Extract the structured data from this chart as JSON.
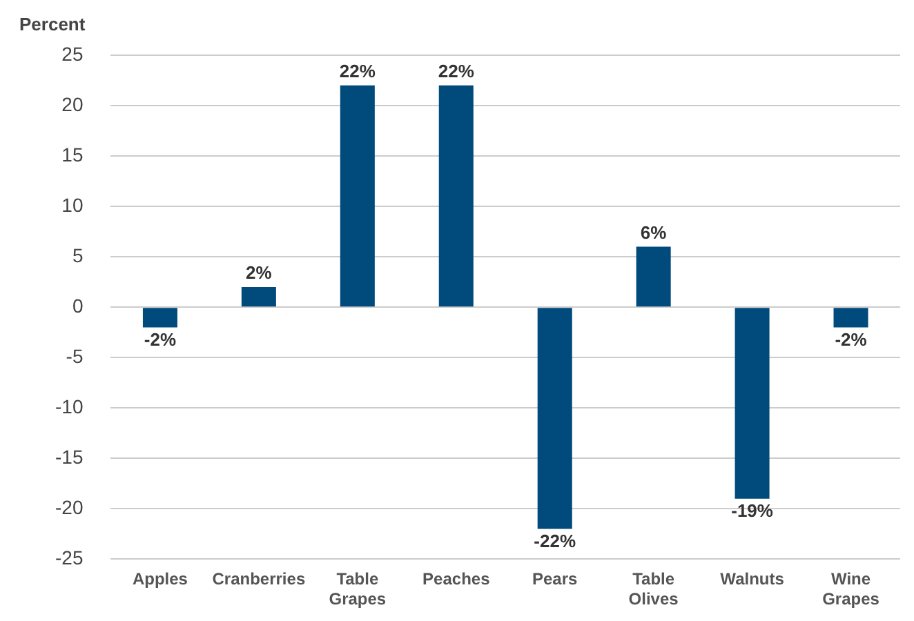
{
  "chart_data": {
    "type": "bar",
    "ylabel": "Percent",
    "categories": [
      "Apples",
      "Cranberries",
      "Table Grapes",
      "Peaches",
      "Pears",
      "Table Olives",
      "Walnuts",
      "Wine Grapes"
    ],
    "values": [
      -2,
      2,
      22,
      22,
      -22,
      6,
      -19,
      -2
    ],
    "value_labels": [
      "-2%",
      "2%",
      "22%",
      "22%",
      "-22%",
      "6%",
      "-19%",
      "-2%"
    ],
    "color": "#004a7c",
    "ylim": [
      -25,
      25
    ],
    "yticks": [
      -25,
      -20,
      -15,
      -10,
      -5,
      0,
      5,
      10,
      15,
      20,
      25
    ],
    "grid": "y",
    "legend": false
  }
}
